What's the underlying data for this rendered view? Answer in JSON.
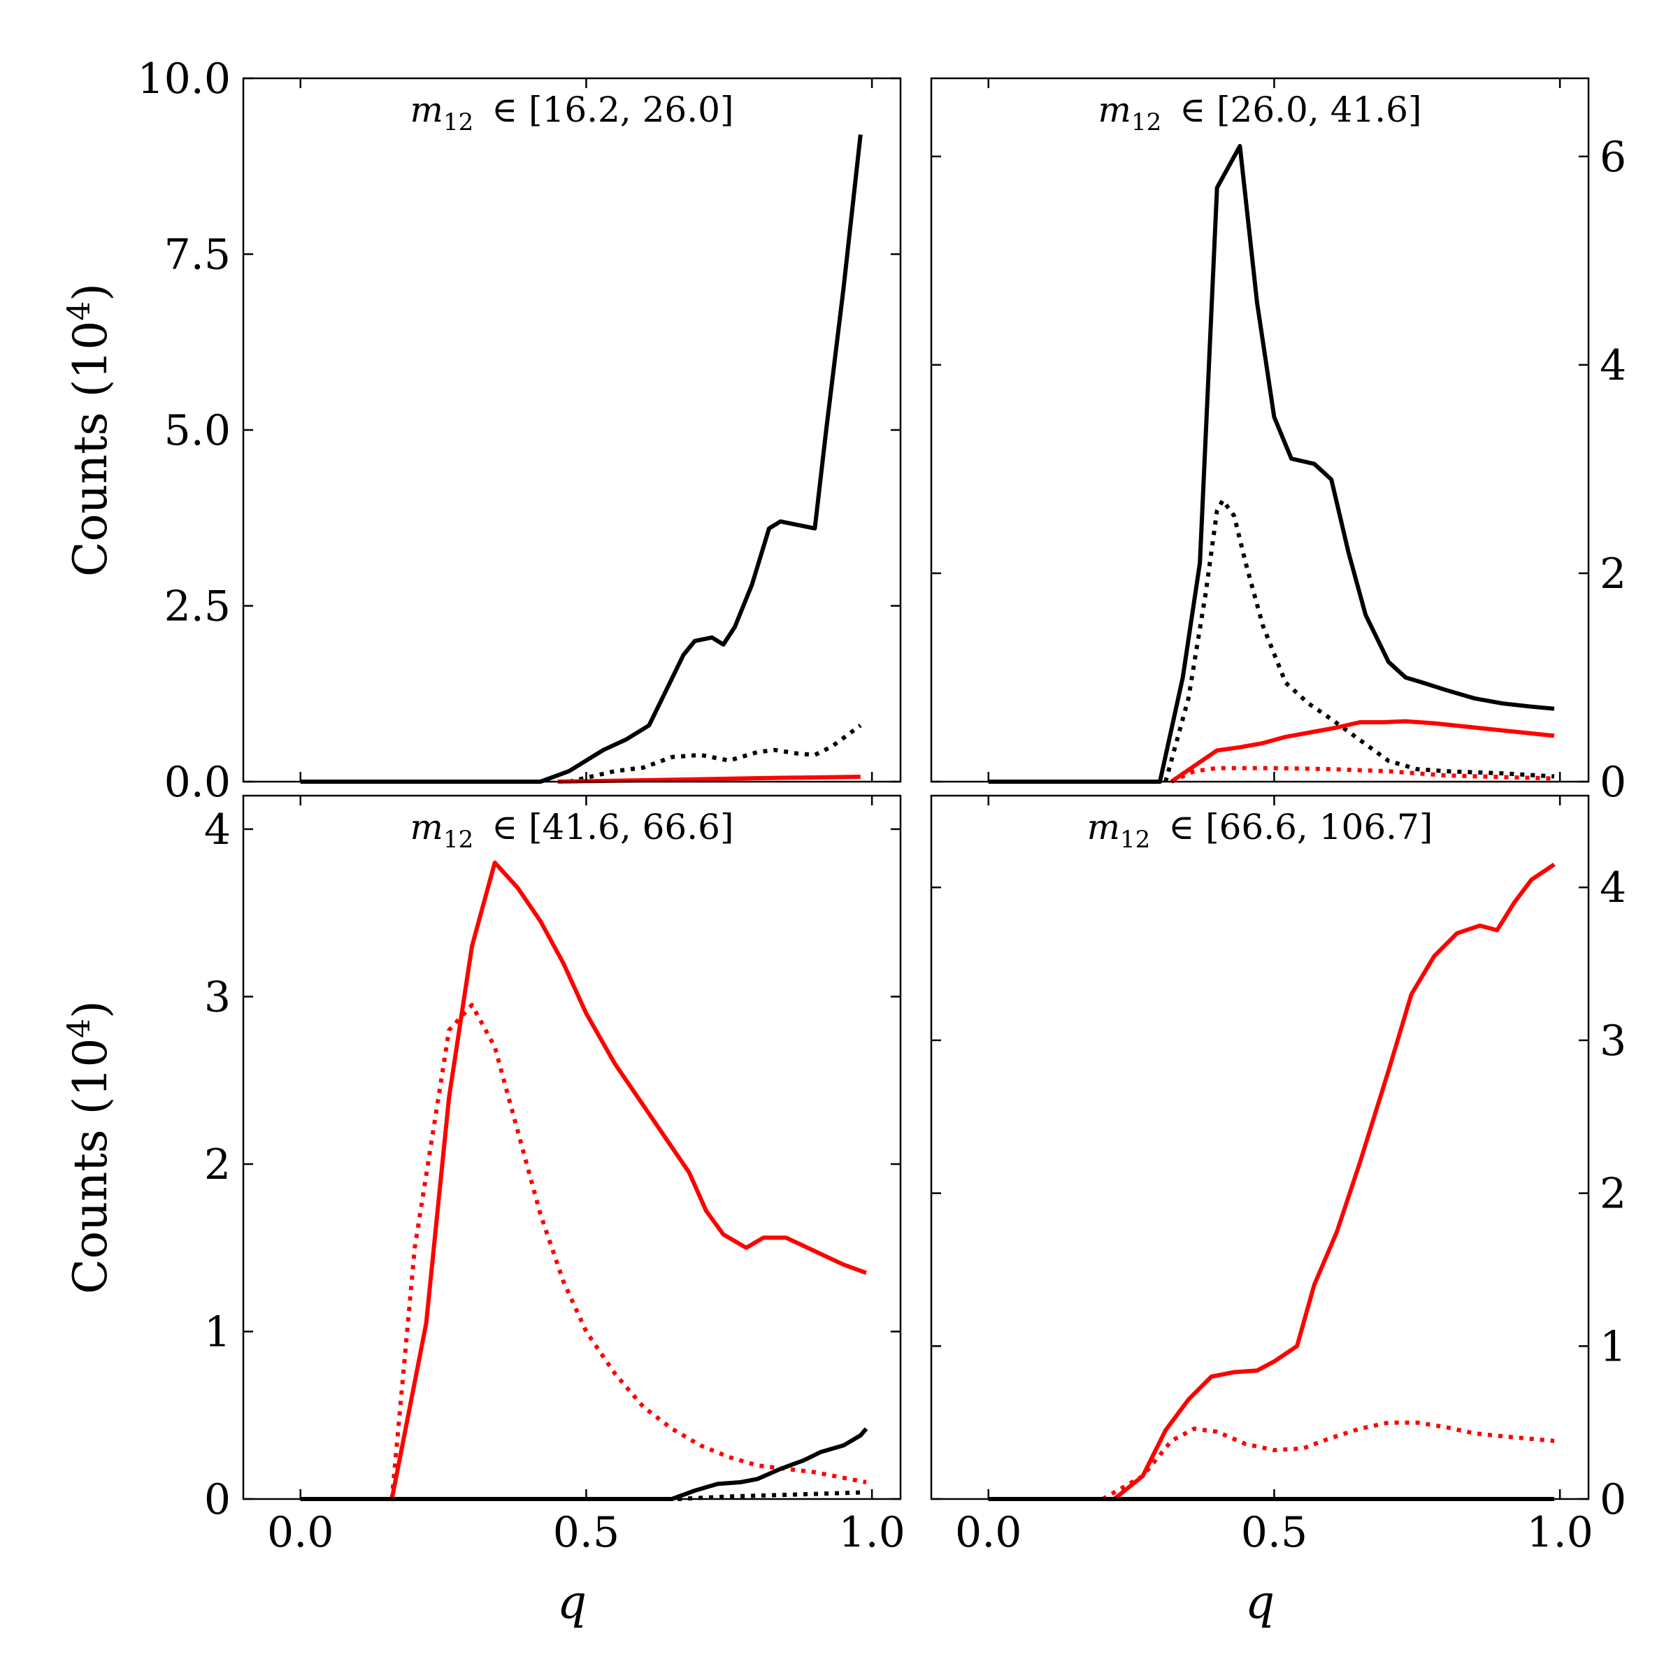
{
  "figure": {
    "ylabel": "Counts (10",
    "ylabel_sup": "4",
    "ylabel_end": ")",
    "xlabel": "q"
  },
  "chart_data": [
    {
      "type": "line",
      "panel": "top-left",
      "title_var": "m",
      "title_sub": "12",
      "title_range": "∈ [16.2, 26.0]",
      "xlim": [
        -0.1,
        1.05
      ],
      "ylim": [
        0,
        10.0
      ],
      "xticks": [
        0.0,
        0.5,
        1.0
      ],
      "xtick_labels": [
        "0.0",
        "0.5",
        "1.0"
      ],
      "yticks": [
        0.0,
        2.5,
        5.0,
        7.5,
        10.0
      ],
      "ytick_labels": [
        "0.0",
        "2.5",
        "5.0",
        "7.5",
        "10.0"
      ],
      "yaxis_side": "left",
      "show_xtick_labels": false,
      "show_ylabel": true,
      "show_xlabel": false,
      "series": [
        {
          "name": "black solid",
          "color": "#000000",
          "style": "solid",
          "x": [
            0.0,
            0.42,
            0.47,
            0.5,
            0.53,
            0.57,
            0.61,
            0.64,
            0.67,
            0.69,
            0.72,
            0.74,
            0.76,
            0.79,
            0.82,
            0.84,
            0.87,
            0.9,
            0.92,
            0.95,
            0.98
          ],
          "y": [
            0.0,
            0.0,
            0.15,
            0.3,
            0.45,
            0.6,
            0.8,
            1.3,
            1.8,
            2.0,
            2.05,
            1.95,
            2.2,
            2.8,
            3.6,
            3.7,
            3.65,
            3.6,
            5.0,
            7.0,
            9.2
          ]
        },
        {
          "name": "black dotted",
          "color": "#000000",
          "style": "dotted",
          "x": [
            0.47,
            0.55,
            0.6,
            0.65,
            0.7,
            0.75,
            0.8,
            0.83,
            0.87,
            0.9,
            0.93,
            0.98
          ],
          "y": [
            0.0,
            0.15,
            0.2,
            0.35,
            0.38,
            0.3,
            0.42,
            0.45,
            0.4,
            0.38,
            0.5,
            0.8
          ]
        },
        {
          "name": "red solid",
          "color": "#ff0000",
          "style": "solid",
          "x": [
            0.45,
            0.6,
            0.8,
            0.98
          ],
          "y": [
            0.0,
            0.02,
            0.05,
            0.07
          ]
        }
      ]
    },
    {
      "type": "line",
      "panel": "top-right",
      "title_var": "m",
      "title_sub": "12",
      "title_range": "∈ [26.0, 41.6]",
      "xlim": [
        -0.1,
        1.05
      ],
      "ylim": [
        0,
        6.75
      ],
      "xticks": [
        0.0,
        0.5,
        1.0
      ],
      "xtick_labels": [
        "0.0",
        "0.5",
        "1.0"
      ],
      "yticks": [
        0,
        2,
        4,
        6
      ],
      "ytick_labels": [
        "0",
        "2",
        "4",
        "6"
      ],
      "yaxis_side": "right",
      "show_xtick_labels": false,
      "show_ylabel": false,
      "show_xlabel": false,
      "series": [
        {
          "name": "black solid",
          "color": "#000000",
          "style": "solid",
          "x": [
            0.0,
            0.3,
            0.34,
            0.37,
            0.4,
            0.44,
            0.47,
            0.5,
            0.53,
            0.57,
            0.6,
            0.63,
            0.66,
            0.7,
            0.73,
            0.76,
            0.8,
            0.85,
            0.9,
            0.95,
            0.99
          ],
          "y": [
            0.0,
            0.0,
            1.0,
            2.1,
            5.7,
            6.1,
            4.6,
            3.5,
            3.1,
            3.05,
            2.9,
            2.2,
            1.6,
            1.15,
            1.0,
            0.95,
            0.88,
            0.8,
            0.75,
            0.72,
            0.7
          ]
        },
        {
          "name": "black dotted",
          "color": "#000000",
          "style": "dotted",
          "x": [
            0.31,
            0.35,
            0.38,
            0.4,
            0.41,
            0.43,
            0.45,
            0.48,
            0.52,
            0.56,
            0.6,
            0.65,
            0.7,
            0.75,
            0.8,
            0.9,
            0.99
          ],
          "y": [
            0.0,
            0.8,
            1.8,
            2.6,
            2.7,
            2.55,
            2.1,
            1.5,
            0.95,
            0.75,
            0.6,
            0.4,
            0.2,
            0.12,
            0.1,
            0.08,
            0.05
          ]
        },
        {
          "name": "red solid",
          "color": "#ff0000",
          "style": "solid",
          "x": [
            0.32,
            0.36,
            0.4,
            0.44,
            0.48,
            0.52,
            0.57,
            0.61,
            0.65,
            0.69,
            0.73,
            0.78,
            0.85,
            0.99
          ],
          "y": [
            0.0,
            0.15,
            0.3,
            0.33,
            0.37,
            0.43,
            0.48,
            0.52,
            0.57,
            0.57,
            0.58,
            0.56,
            0.52,
            0.44
          ]
        },
        {
          "name": "red dotted",
          "color": "#ff0000",
          "style": "dotted",
          "x": [
            0.32,
            0.36,
            0.4,
            0.5,
            0.6,
            0.7,
            0.8,
            0.99
          ],
          "y": [
            0.0,
            0.1,
            0.13,
            0.13,
            0.12,
            0.1,
            0.06,
            0.03
          ]
        }
      ]
    },
    {
      "type": "line",
      "panel": "bottom-left",
      "title_var": "m",
      "title_sub": "12",
      "title_range": "∈ [41.6, 66.6]",
      "xlim": [
        -0.1,
        1.05
      ],
      "ylim": [
        0,
        4.2
      ],
      "xticks": [
        0.0,
        0.5,
        1.0
      ],
      "xtick_labels": [
        "0.0",
        "0.5",
        "1.0"
      ],
      "yticks": [
        0,
        1,
        2,
        3,
        4
      ],
      "ytick_labels": [
        "0",
        "1",
        "2",
        "3",
        "4"
      ],
      "yaxis_side": "left",
      "show_xtick_labels": true,
      "show_ylabel": true,
      "show_xlabel": true,
      "series": [
        {
          "name": "red solid",
          "color": "#ff0000",
          "style": "solid",
          "x": [
            0.0,
            0.16,
            0.22,
            0.26,
            0.3,
            0.34,
            0.38,
            0.42,
            0.46,
            0.5,
            0.55,
            0.6,
            0.64,
            0.68,
            0.71,
            0.74,
            0.78,
            0.81,
            0.85,
            0.9,
            0.95,
            0.99
          ],
          "y": [
            0.0,
            0.0,
            1.05,
            2.4,
            3.3,
            3.8,
            3.65,
            3.45,
            3.2,
            2.9,
            2.6,
            2.35,
            2.15,
            1.95,
            1.72,
            1.58,
            1.5,
            1.56,
            1.56,
            1.48,
            1.4,
            1.35
          ]
        },
        {
          "name": "red dotted",
          "color": "#ff0000",
          "style": "dotted",
          "x": [
            0.16,
            0.2,
            0.26,
            0.3,
            0.34,
            0.38,
            0.42,
            0.46,
            0.5,
            0.55,
            0.6,
            0.65,
            0.7,
            0.75,
            0.8,
            0.85,
            0.9,
            0.99
          ],
          "y": [
            0.0,
            1.5,
            2.8,
            2.95,
            2.7,
            2.2,
            1.7,
            1.3,
            1.0,
            0.75,
            0.55,
            0.42,
            0.32,
            0.25,
            0.2,
            0.18,
            0.16,
            0.1
          ]
        },
        {
          "name": "black solid",
          "color": "#000000",
          "style": "solid",
          "x": [
            0.0,
            0.65,
            0.69,
            0.73,
            0.77,
            0.8,
            0.84,
            0.88,
            0.91,
            0.95,
            0.98,
            0.99
          ],
          "y": [
            0.0,
            0.0,
            0.05,
            0.09,
            0.1,
            0.12,
            0.18,
            0.23,
            0.28,
            0.32,
            0.38,
            0.42
          ]
        },
        {
          "name": "black dotted",
          "color": "#000000",
          "style": "dotted",
          "x": [
            0.66,
            0.75,
            0.85,
            0.99
          ],
          "y": [
            0.0,
            0.015,
            0.025,
            0.04
          ]
        }
      ]
    },
    {
      "type": "line",
      "panel": "bottom-right",
      "title_var": "m",
      "title_sub": "12",
      "title_range": "∈ [66.6, 106.7]",
      "xlim": [
        -0.1,
        1.05
      ],
      "ylim": [
        0,
        4.6
      ],
      "xticks": [
        0.0,
        0.5,
        1.0
      ],
      "xtick_labels": [
        "0.0",
        "0.5",
        "1.0"
      ],
      "yticks": [
        0,
        1,
        2,
        3,
        4
      ],
      "ytick_labels": [
        "0",
        "1",
        "2",
        "3",
        "4"
      ],
      "yaxis_side": "right",
      "show_xtick_labels": true,
      "show_ylabel": false,
      "show_xlabel": true,
      "series": [
        {
          "name": "red solid",
          "color": "#ff0000",
          "style": "solid",
          "x": [
            0.0,
            0.22,
            0.27,
            0.31,
            0.35,
            0.39,
            0.43,
            0.47,
            0.5,
            0.54,
            0.57,
            0.61,
            0.65,
            0.7,
            0.74,
            0.78,
            0.82,
            0.86,
            0.89,
            0.92,
            0.95,
            0.99
          ],
          "y": [
            0.0,
            0.0,
            0.15,
            0.45,
            0.65,
            0.8,
            0.83,
            0.84,
            0.9,
            1.0,
            1.4,
            1.75,
            2.2,
            2.8,
            3.3,
            3.55,
            3.7,
            3.75,
            3.72,
            3.9,
            4.05,
            4.15
          ]
        },
        {
          "name": "red dotted",
          "color": "#ff0000",
          "style": "dotted",
          "x": [
            0.2,
            0.27,
            0.32,
            0.36,
            0.4,
            0.45,
            0.5,
            0.55,
            0.6,
            0.65,
            0.7,
            0.75,
            0.8,
            0.85,
            0.9,
            0.99
          ],
          "y": [
            0.0,
            0.15,
            0.38,
            0.46,
            0.44,
            0.36,
            0.32,
            0.33,
            0.4,
            0.46,
            0.5,
            0.5,
            0.47,
            0.43,
            0.41,
            0.38
          ]
        },
        {
          "name": "black solid",
          "color": "#000000",
          "style": "solid",
          "x": [
            0.0,
            0.99
          ],
          "y": [
            0.0,
            0.0
          ]
        }
      ]
    }
  ]
}
